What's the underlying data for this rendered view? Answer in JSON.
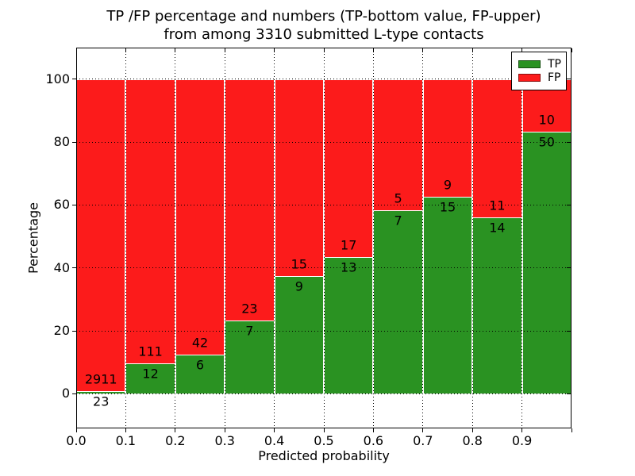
{
  "figure": {
    "title_line1": "TP /FP percentage and numbers (TP-bottom value, FP-upper)",
    "title_line2": "from among 3310 submitted L-type contacts",
    "xlabel": "Predicted probability",
    "ylabel": "Percentage"
  },
  "chart_data": {
    "type": "bar",
    "subtype": "stacked-percentage-histogram",
    "title": "TP /FP percentage and numbers (TP-bottom value, FP-upper) from among 3310 submitted L-type contacts",
    "xlabel": "Predicted probability",
    "ylabel": "Percentage",
    "total_contacts": 3310,
    "bins": [
      "0.0-0.1",
      "0.1-0.2",
      "0.2-0.3",
      "0.3-0.4",
      "0.4-0.5",
      "0.5-0.6",
      "0.6-0.7",
      "0.7-0.8",
      "0.8-0.9",
      "0.9-1.0"
    ],
    "series": [
      {
        "name": "TP",
        "color": "#2a9222",
        "counts": [
          23,
          12,
          6,
          7,
          9,
          13,
          7,
          15,
          14,
          50
        ]
      },
      {
        "name": "FP",
        "color": "#fc1b1b",
        "counts": [
          2911,
          111,
          42,
          23,
          15,
          17,
          5,
          9,
          11,
          10
        ]
      }
    ],
    "tp_percent_of_bin": [
      0.78,
      9.76,
      12.5,
      23.33,
      37.5,
      43.33,
      58.33,
      62.5,
      56.0,
      83.33
    ],
    "x_tick_labels": [
      "0.0",
      "0.1",
      "0.2",
      "0.3",
      "0.4",
      "0.5",
      "0.6",
      "0.7",
      "0.8",
      "0.9"
    ],
    "x_tick_values": [
      0.0,
      0.1,
      0.2,
      0.3,
      0.4,
      0.5,
      0.6,
      0.7,
      0.8,
      0.9
    ],
    "y_tick_values": [
      0,
      20,
      40,
      60,
      80,
      100
    ],
    "xlim": [
      0.0,
      1.0
    ],
    "ylim_percent": [
      -11,
      110
    ],
    "grid": "dotted",
    "legend": {
      "position": "upper right",
      "entries": [
        {
          "label": "TP",
          "color": "#2a9222"
        },
        {
          "label": "FP",
          "color": "#fc1b1b"
        }
      ]
    }
  }
}
